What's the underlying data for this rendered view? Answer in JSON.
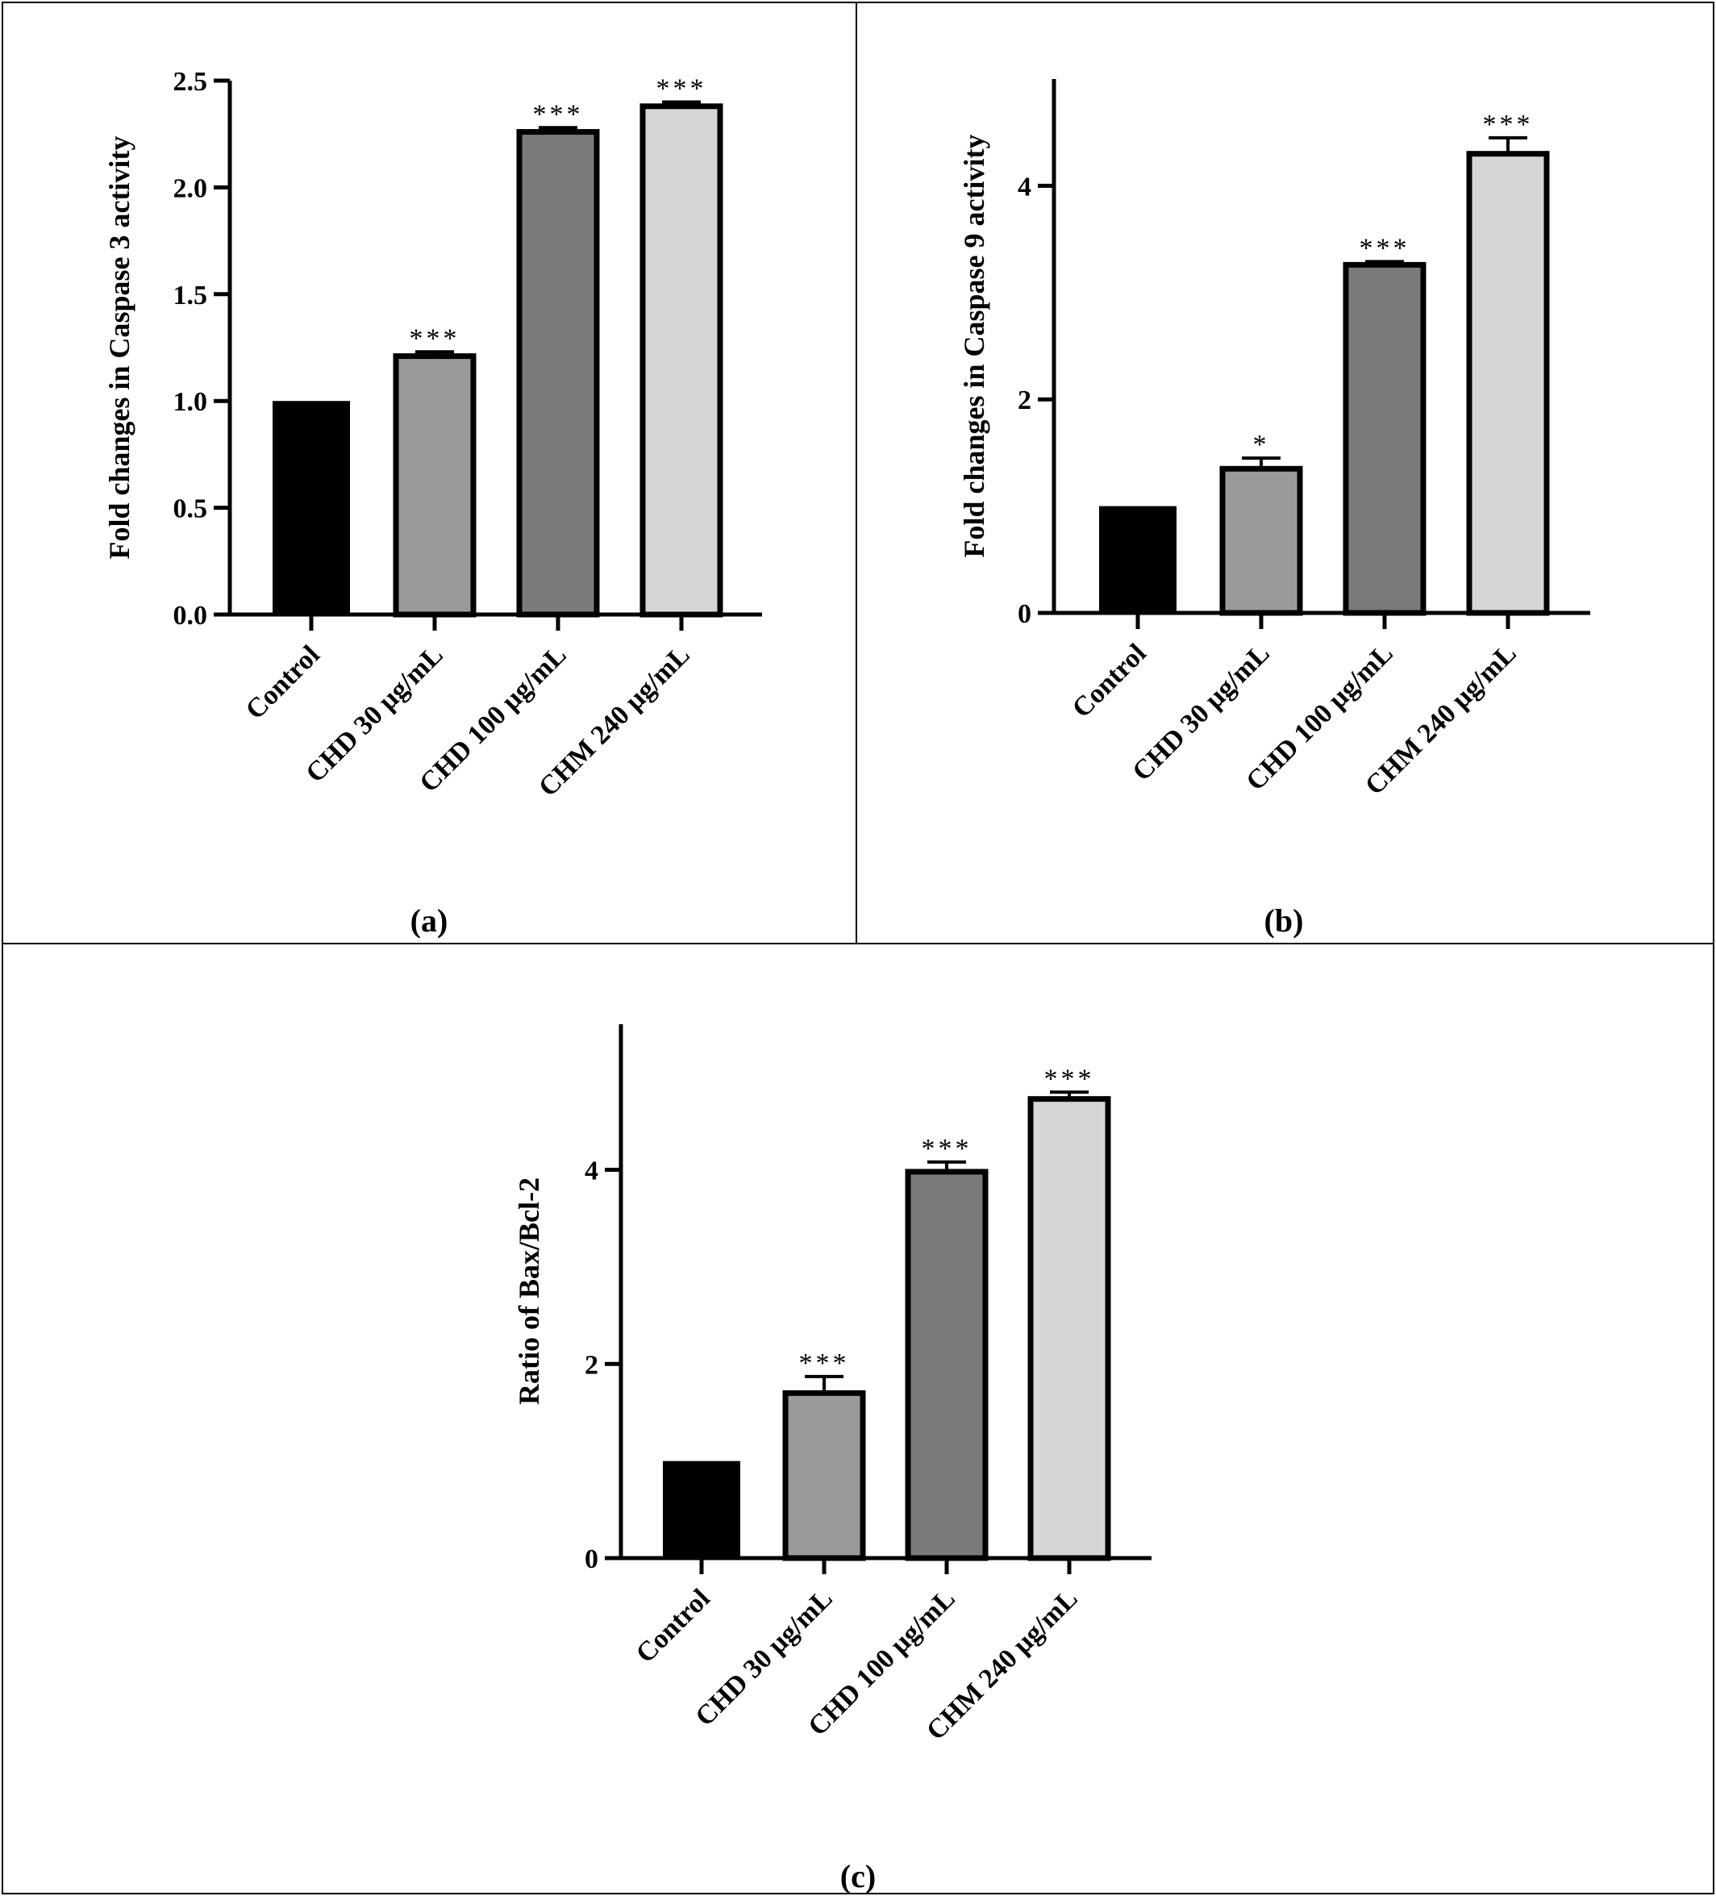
{
  "chart_data": [
    {
      "type": "bar",
      "panel_label": "(a)",
      "ylabel": "Fold changes in Caspase 3 activity",
      "xlabel": "",
      "categories": [
        "Control",
        "CHD 30 µg/mL",
        "CHD 100 µg/mL",
        "CHM 240 µg/mL"
      ],
      "values": [
        1.0,
        1.21,
        2.26,
        2.38
      ],
      "errors": [
        0.0,
        0.02,
        0.02,
        0.02
      ],
      "significance": [
        "",
        "***",
        "***",
        "***"
      ],
      "ylim": [
        0,
        2.5
      ],
      "yticks": [
        0.0,
        0.5,
        1.0,
        1.5,
        2.0,
        2.5
      ],
      "ytick_labels": [
        "0.0",
        "0.5",
        "1.0",
        "1.5",
        "2.0",
        "2.5"
      ],
      "grid": false,
      "bar_colors": [
        "#000000",
        "#9a9a9a",
        "#7a7a7a",
        "#d6d6d6"
      ]
    },
    {
      "type": "bar",
      "panel_label": "(b)",
      "ylabel": "Fold changes in Caspase 9 activity",
      "xlabel": "",
      "categories": [
        "Control",
        "CHD 30 µg/mL",
        "CHD 100 µg/mL",
        "CHM 240 µg/mL"
      ],
      "values": [
        1.0,
        1.35,
        3.26,
        4.3
      ],
      "errors": [
        0.0,
        0.1,
        0.03,
        0.15
      ],
      "significance": [
        "",
        "*",
        "***",
        "***"
      ],
      "ylim": [
        0,
        5
      ],
      "yticks": [
        0,
        2,
        4
      ],
      "ytick_labels": [
        "0",
        "2",
        "4"
      ],
      "grid": false,
      "bar_colors": [
        "#000000",
        "#9a9a9a",
        "#7a7a7a",
        "#d6d6d6"
      ]
    },
    {
      "type": "bar",
      "panel_label": "(c)",
      "ylabel": "Ratio of Bax/Bcl-2",
      "xlabel": "",
      "categories": [
        "Control",
        "CHD 30 µg/mL",
        "CHD 100 µg/mL",
        "CHM 240 µg/mL"
      ],
      "values": [
        1.0,
        1.7,
        3.98,
        4.73
      ],
      "errors": [
        0.0,
        0.17,
        0.1,
        0.07
      ],
      "significance": [
        "",
        "***",
        "***",
        "***"
      ],
      "ylim": [
        0,
        5.5
      ],
      "yticks": [
        0,
        2,
        4
      ],
      "ytick_labels": [
        "0",
        "2",
        "4"
      ],
      "grid": false,
      "bar_colors": [
        "#000000",
        "#9a9a9a",
        "#7a7a7a",
        "#d6d6d6"
      ]
    }
  ]
}
